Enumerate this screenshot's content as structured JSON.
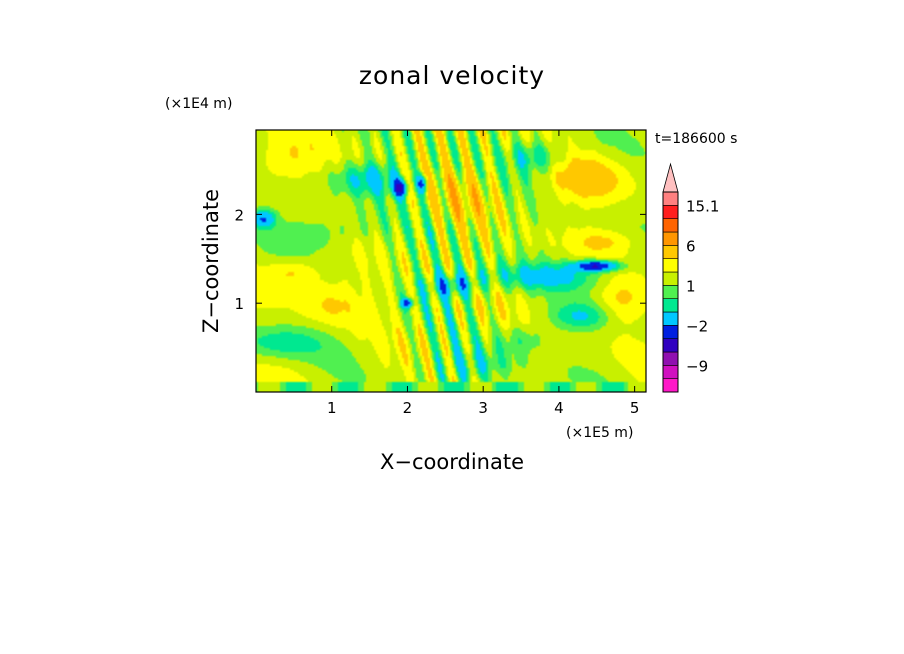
{
  "chart_data": {
    "type": "heatmap",
    "title": "zonal velocity",
    "xlabel": "X−coordinate",
    "ylabel": "Z−coordinate",
    "x_unit": "(×1E5 m)",
    "y_unit": "(×1E4 m)",
    "time_label": "t=186600 s",
    "xlim": [
      0,
      5.15
    ],
    "ylim": [
      0,
      2.95
    ],
    "x_ticks": [
      1,
      2,
      3,
      4,
      5
    ],
    "y_ticks": [
      1,
      2
    ],
    "x_tick_labels": [
      "1",
      "2",
      "3",
      "4",
      "5"
    ],
    "y_tick_labels": [
      "1",
      "2"
    ],
    "colorbar": {
      "levels": [
        -15,
        -12,
        -9,
        -6,
        -4,
        -2,
        -1,
        0,
        1,
        2,
        4,
        6,
        9,
        12,
        15.1
      ],
      "colors": [
        "#ff18c8",
        "#d010c0",
        "#9010b0",
        "#3000c0",
        "#0020e0",
        "#00c8ff",
        "#00e890",
        "#50f050",
        "#c8f000",
        "#ffff00",
        "#ffc800",
        "#ff9600",
        "#ff6400",
        "#ff1e1e",
        "#ff8080",
        "#ffc0c0"
      ],
      "tick_labels": [
        {
          "value": 15.1,
          "text": "15.1"
        },
        {
          "value": 6,
          "text": "6"
        },
        {
          "value": 1,
          "text": "1"
        },
        {
          "value": -2,
          "text": "−2"
        },
        {
          "value": -9,
          "text": "−9"
        }
      ],
      "extend": "max"
    },
    "features": [
      {
        "x": 0.35,
        "z": 2.6,
        "v": 1.5,
        "sx": 0.45,
        "sz": 0.25
      },
      {
        "x": 1.0,
        "z": 1.0,
        "v": 1.6,
        "sx": 0.4,
        "sz": 0.25
      },
      {
        "x": 0.5,
        "z": 1.35,
        "v": 2.0,
        "sx": 0.35,
        "sz": 0.15
      },
      {
        "x": 4.4,
        "z": 2.4,
        "v": 2.2,
        "sx": 0.5,
        "sz": 0.25
      },
      {
        "x": 4.8,
        "z": 1.0,
        "v": 1.5,
        "sx": 0.3,
        "sz": 0.25
      },
      {
        "x": 4.6,
        "z": 1.7,
        "v": 1.3,
        "sx": 0.45,
        "sz": 0.12
      },
      {
        "x": 2.0,
        "z": 2.4,
        "v": 1.3,
        "sx": 0.4,
        "sz": 0.15
      },
      {
        "x": 2.8,
        "z": 2.2,
        "v": 1.4,
        "sx": 0.4,
        "sz": 0.35
      },
      {
        "x": 0.3,
        "z": 0.55,
        "v": -2.2,
        "sx": 0.6,
        "sz": 0.18
      },
      {
        "x": 0.9,
        "z": 1.8,
        "v": -1.5,
        "sx": 0.6,
        "sz": 0.2
      },
      {
        "x": 1.6,
        "z": 2.4,
        "v": -3.5,
        "sx": 0.5,
        "sz": 0.18
      },
      {
        "x": 1.9,
        "z": 2.3,
        "v": -5.5,
        "sx": 0.1,
        "sz": 0.1
      },
      {
        "x": 2.2,
        "z": 2.35,
        "v": -5.0,
        "sx": 0.08,
        "sz": 0.1
      },
      {
        "x": 3.8,
        "z": 1.3,
        "v": -2.8,
        "sx": 0.8,
        "sz": 0.15
      },
      {
        "x": 4.5,
        "z": 1.42,
        "v": -7.0,
        "sx": 0.3,
        "sz": 0.06
      },
      {
        "x": 2.9,
        "z": 0.3,
        "v": -1.8,
        "sx": 0.6,
        "sz": 0.2
      },
      {
        "x": 0.1,
        "z": 1.95,
        "v": -4.5,
        "sx": 0.15,
        "sz": 0.1
      },
      {
        "x": 3.7,
        "z": 2.65,
        "v": -2.8,
        "sx": 0.35,
        "sz": 0.18
      },
      {
        "x": 2.6,
        "z": 1.2,
        "v": -3.5,
        "sx": 0.35,
        "sz": 0.15
      },
      {
        "x": 2.0,
        "z": 1.0,
        "v": -5.0,
        "sx": 0.08,
        "sz": 0.05
      },
      {
        "x": 4.3,
        "z": 0.85,
        "v": -2.5,
        "sx": 0.4,
        "sz": 0.15
      },
      {
        "x": 3.5,
        "z": 0.6,
        "v": -1.5,
        "sx": 0.3,
        "sz": 0.15
      }
    ]
  }
}
